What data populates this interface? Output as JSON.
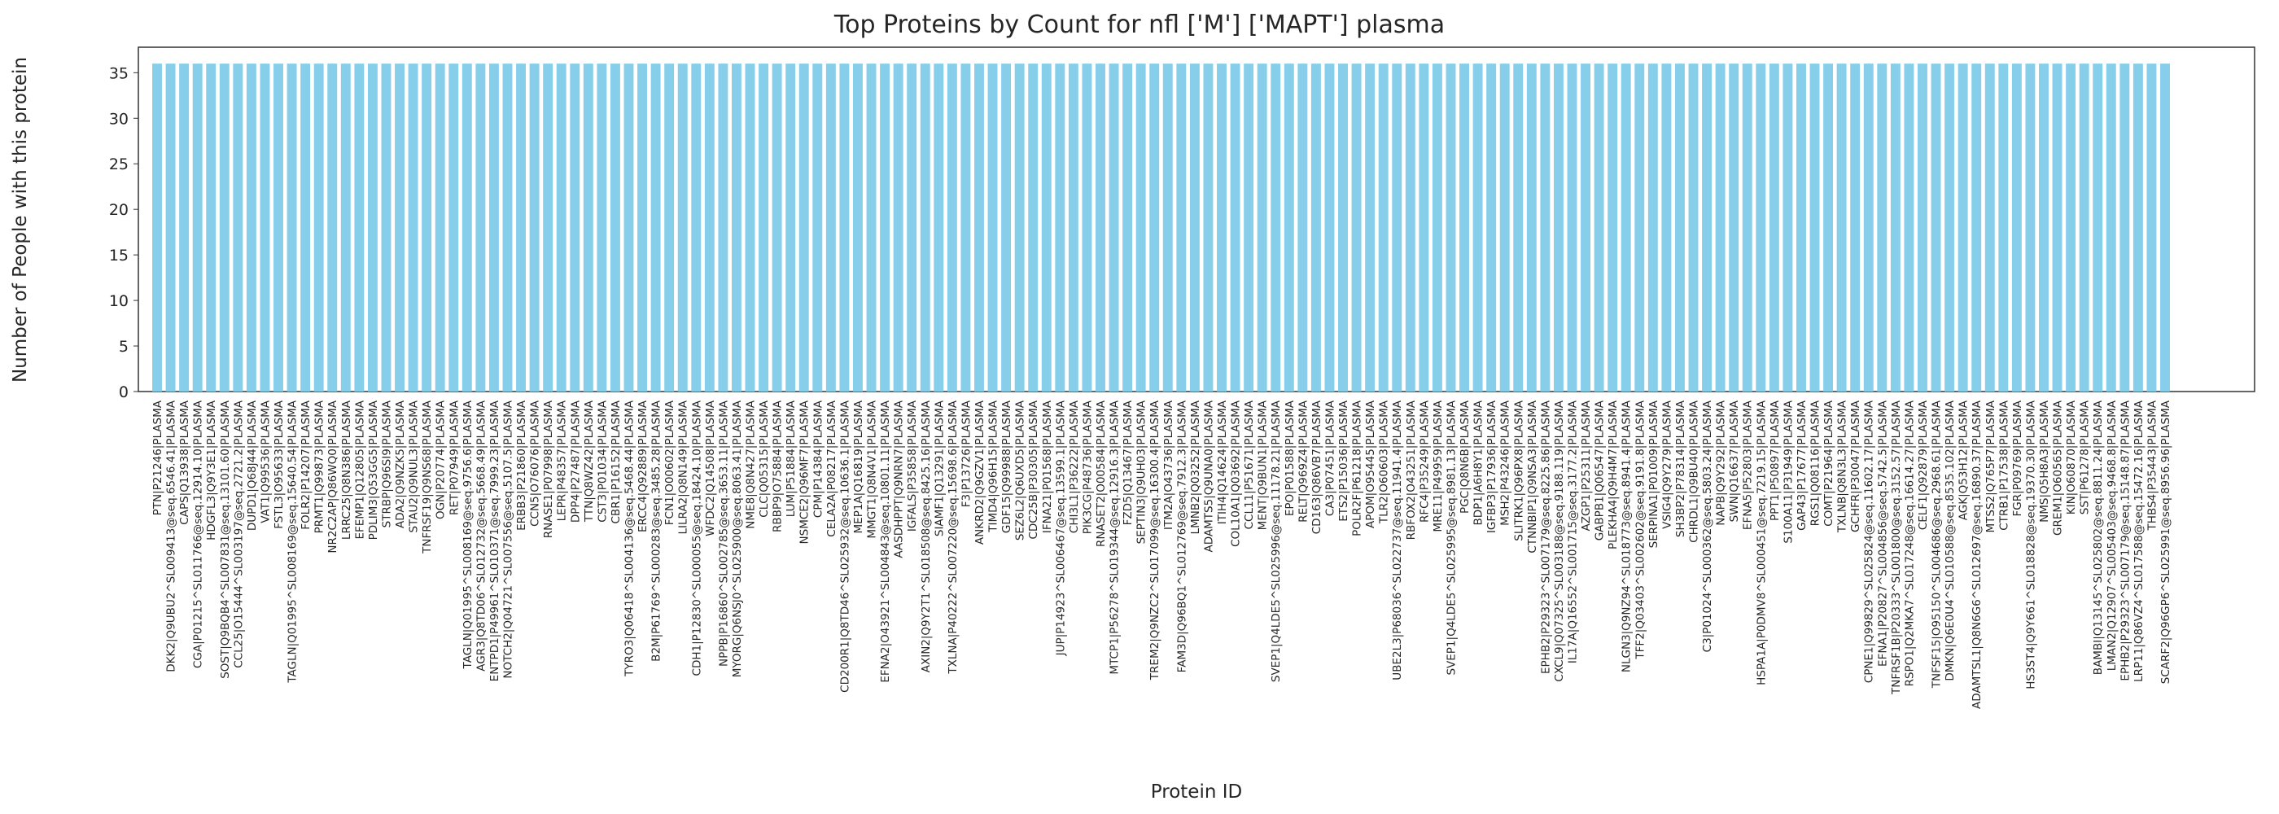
{
  "chart_data": {
    "type": "bar",
    "title": "Top Proteins by Count for nfl ['M'] ['MAPT'] plasma",
    "xlabel": "Protein ID",
    "ylabel": "Number of People with this protein",
    "ylim": [
      0,
      37.8
    ],
    "yticks": [
      0,
      5,
      10,
      15,
      20,
      25,
      30,
      35
    ],
    "grid": false,
    "legend": "none",
    "bar_color": "#87CEEB",
    "categories": [
      "PTN|P21246|PLASMA",
      "DKK2|Q9UBU2^SL009413@seq.6546.41|PLASMA",
      "CAPS|Q13938|PLASMA",
      "CGA|P01215^SL011766@seq.12914.10|PLASMA",
      "HDGFL3|Q9Y3E1|PLASMA",
      "SOST|Q9BQB4^SL007831@seq.13101.60|PLASMA",
      "CCL25|O15444^SL003197@seq.2721.2|PLASMA",
      "DUPD1|Q68J44|PLASMA",
      "VAT1|Q99536|PLASMA",
      "FSTL3|O95633|PLASMA",
      "TAGLN|Q01995^SL008169@seq.15640.54|PLASMA",
      "FOLR2|P14207|PLASMA",
      "PRMT1|Q99873|PLASMA",
      "NR2C2AP|Q86WQ0|PLASMA",
      "LRRC25|Q8N386|PLASMA",
      "EFEMP1|Q12805|PLASMA",
      "PDLIM3|Q53GG5|PLASMA",
      "STRBP|Q96SI9|PLASMA",
      "ADA2|Q9NZK5|PLASMA",
      "STAU2|Q9NUL3|PLASMA",
      "TNFRSF19|Q9NS68|PLASMA",
      "OGN|P20774|PLASMA",
      "RET|P07949|PLASMA",
      "TAGLN|Q01995^SL008169@seq.9756.6|PLASMA",
      "AGR3|Q8TD06^SL012732@seq.5668.49|PLASMA",
      "ENTPD1|P49961^SL010371@seq.7999.23|PLASMA",
      "NOTCH2|Q04721^SL007556@seq.5107.5|PLASMA",
      "ERBB3|P21860|PLASMA",
      "CCN5|O76076|PLASMA",
      "RNASE1|P07998|PLASMA",
      "LEPR|P48357|PLASMA",
      "DPP4|P27487|PLASMA",
      "TTN|Q8WZ42|PLASMA",
      "CST3|P01034|PLASMA",
      "CBR1|P16152|PLASMA",
      "TYRO3|Q06418^SL004136@seq.5468.44|PLASMA",
      "ERCC4|Q92889|PLASMA",
      "B2M|P61769^SL000283@seq.3485.28|PLASMA",
      "FCN1|O00602|PLASMA",
      "LILRA2|Q8N149|PLASMA",
      "CDH1|P12830^SL000055@seq.18424.10|PLASMA",
      "WFDC2|Q14508|PLASMA",
      "NPPB|P16860^SL002785@seq.3653.11|PLASMA",
      "MYORG|Q6NSJ0^SL025900@seq.8063.41|PLASMA",
      "NME8|Q8N427|PLASMA",
      "CLC|Q05315|PLASMA",
      "RBBP9|O75884|PLASMA",
      "LUM|P51884|PLASMA",
      "NSMCE2|Q96MF7|PLASMA",
      "CPM|P14384|PLASMA",
      "CELA2A|P08217|PLASMA",
      "CD200R1|Q8TD46^SL025932@seq.10636.1|PLASMA",
      "MEP1A|Q16819|PLASMA",
      "MMGT1|Q8N4V1|PLASMA",
      "EFNA2|O43921^SL004843@seq.10801.11|PLASMA",
      "AASDHPPT|Q9NRN7|PLASMA",
      "IGFALS|P35858|PLASMA",
      "AXIN2|Q9Y2T1^SL018508@seq.8425.16|PLASMA",
      "SIAMF1|Q13291|PLASMA",
      "TXLNA|P40222^SL007220@seq.15698.6|PLASMA",
      "F3|P13726|PLASMA",
      "ANKRD2|Q9GZV1|PLASMA",
      "TIMD4|Q96H15|PLASMA",
      "GDF15|Q99988|PLASMA",
      "SEZ6L2|Q6UXD5|PLASMA",
      "CDC25B|P30305|PLASMA",
      "IFNA21|P01568|PLASMA",
      "JUP|P14923^SL006467@seq.13599.1|PLASMA",
      "CHI3L1|P36222|PLASMA",
      "PIK3CG|P48736|PLASMA",
      "RNASET2|O00584|PLASMA",
      "MTCP1|P56278^SL019344@seq.12916.3|PLASMA",
      "FZD5|Q13467|PLASMA",
      "SEPTIN3|Q9UH03|PLASMA",
      "TREM2|Q9NZC2^SL017099@seq.16300.4|PLASMA",
      "ITM2A|O43736|PLASMA",
      "FAM3D|Q96BQ1^SL012769@seq.7912.3|PLASMA",
      "LMNB2|Q03252|PLASMA",
      "ADAMTS5|Q9UNA0|PLASMA",
      "ITIH4|Q14624|PLASMA",
      "COL10A1|Q03692|PLASMA",
      "CCL11|P51671|PLASMA",
      "MENT|Q9BUN1|PLASMA",
      "SVEP1|Q4LDE5^SL025996@seq.11178.21|PLASMA",
      "EPO|P01588|PLASMA",
      "RELT|Q969Z4|PLASMA",
      "CD163|Q86VB7|PLASMA",
      "CA3|P07451|PLASMA",
      "ETS2|P15036|PLASMA",
      "POLR2F|P61218|PLASMA",
      "APOM|O95445|PLASMA",
      "TLR2|O60603|PLASMA",
      "UBE2L3|P68036^SL022737@seq.11941.4|PLASMA",
      "RBFOX2|O43251|PLASMA",
      "RFC4|P35249|PLASMA",
      "MRE11|P49959|PLASMA",
      "SVEP1|Q4LDE5^SL025995@seq.8981.13|PLASMA",
      "PGC|Q8N6B|PLASMA",
      "BDP1|A6H8Y1|PLASMA",
      "IGFBP3|P17936|PLASMA",
      "MSH2|P43246|PLASMA",
      "SLITRK1|Q96PX8|PLASMA",
      "CTNNBIP1|Q9NSA3|PLASMA",
      "EPHB2|P29323^SL007179@seq.8225.86|PLASMA",
      "CXCL9|Q07325^SL003188@seq.9188.119|PLASMA",
      "IL17A|Q16552^SL001715@seq.3177.2|PLASMA",
      "AZGP1|P25311|PLASMA",
      "GABPB1|Q06547|PLASMA",
      "PLEKHA4|Q9H4M7|PLASMA",
      "NLGN3|Q9NZ94^SL018773@seq.8941.4|PLASMA",
      "TFF2|Q03403^SL002602@seq.9191.8|PLASMA",
      "SERPINA1|P01009|PLASMA",
      "VSIG4|Q9Y279|PLASMA",
      "SH3BP2|P78314|PLASMA",
      "CHRDL1|Q9BU40|PLASMA",
      "C3|P01024^SL000362@seq.5803.24|PLASMA",
      "NAPB|Q9Y292|PLASMA",
      "SWN|Q16637|PLASMA",
      "EFNA5|P52803|PLASMA",
      "HSPA1A|P0DMV8^SL000451@seq.7219.15|PLASMA",
      "PPT1|P50897|PLASMA",
      "S100A11|P31949|PLASMA",
      "GAP43|P17677|PLASMA",
      "RGS1|Q08116|PLASMA",
      "COMT|P21964|PLASMA",
      "TXLNB|Q8N3L3|PLASMA",
      "GCHFR|P30047|PLASMA",
      "CPNE1|Q99829^SL025824@seq.11602.17|PLASMA",
      "EFNA1|P20827^SL004856@seq.5742.5|PLASMA",
      "TNFRSF1B|P20333^SL001800@seq.3152.57|PLASMA",
      "RSPO1|Q2MKA7^SL017248@seq.16614.27|PLASMA",
      "CELF1|Q92879|PLASMA",
      "TNFSF15|O95150^SL004686@seq.2968.61|PLASMA",
      "DMKN|Q6E0U4^SL010588@seq.8535.102|PLASMA",
      "AGK|Q53H12|PLASMA",
      "ADAMTSL1|Q8N6G6^SL012697@seq.16890.37|PLASMA",
      "MTSS2|Q765P7|PLASMA",
      "CTRB1|P17538|PLASMA",
      "FGR|P09769|PLASMA",
      "HS3ST4|Q9Y661^SL018828@seq.19370.30|PLASMA",
      "NMS|Q5H8A3|PLASMA",
      "GREM1|O60565|PLASMA",
      "KIN|O60870|PLASMA",
      "SST|P61278|PLASMA",
      "BAMBI|Q13145^SL025802@seq.8811.24|PLASMA",
      "LMAN2|Q12907^SL005403@seq.9468.8|PLASMA",
      "EPHB2|P29323^SL007179@seq.15148.87|PLASMA",
      "LRP11|Q86VZ4^SL017588@seq.15472.16|PLASMA",
      "THBS4|P35443|PLASMA",
      "SCARF2|Q96GP6^SL025991@seq.8956.96|PLASMA"
    ],
    "values": [
      36,
      36,
      36,
      36,
      36,
      36,
      36,
      36,
      36,
      36,
      36,
      36,
      36,
      36,
      36,
      36,
      36,
      36,
      36,
      36,
      36,
      36,
      36,
      36,
      36,
      36,
      36,
      36,
      36,
      36,
      36,
      36,
      36,
      36,
      36,
      36,
      36,
      36,
      36,
      36,
      36,
      36,
      36,
      36,
      36,
      36,
      36,
      36,
      36,
      36,
      36,
      36,
      36,
      36,
      36,
      36,
      36,
      36,
      36,
      36,
      36,
      36,
      36,
      36,
      36,
      36,
      36,
      36,
      36,
      36,
      36,
      36,
      36,
      36,
      36,
      36,
      36,
      36,
      36,
      36,
      36,
      36,
      36,
      36,
      36,
      36,
      36,
      36,
      36,
      36,
      36,
      36,
      36,
      36,
      36,
      36,
      36,
      36,
      36,
      36,
      36,
      36,
      36,
      36,
      36,
      36,
      36,
      36,
      36,
      36,
      36,
      36,
      36,
      36,
      36,
      36,
      36,
      36,
      36,
      36,
      36,
      36,
      36,
      36,
      36,
      36,
      36,
      36,
      36,
      36,
      36,
      36,
      36,
      36,
      36,
      36,
      36,
      36,
      36,
      36,
      36,
      36,
      36,
      36,
      36,
      36,
      36,
      36,
      36,
      36
    ]
  }
}
